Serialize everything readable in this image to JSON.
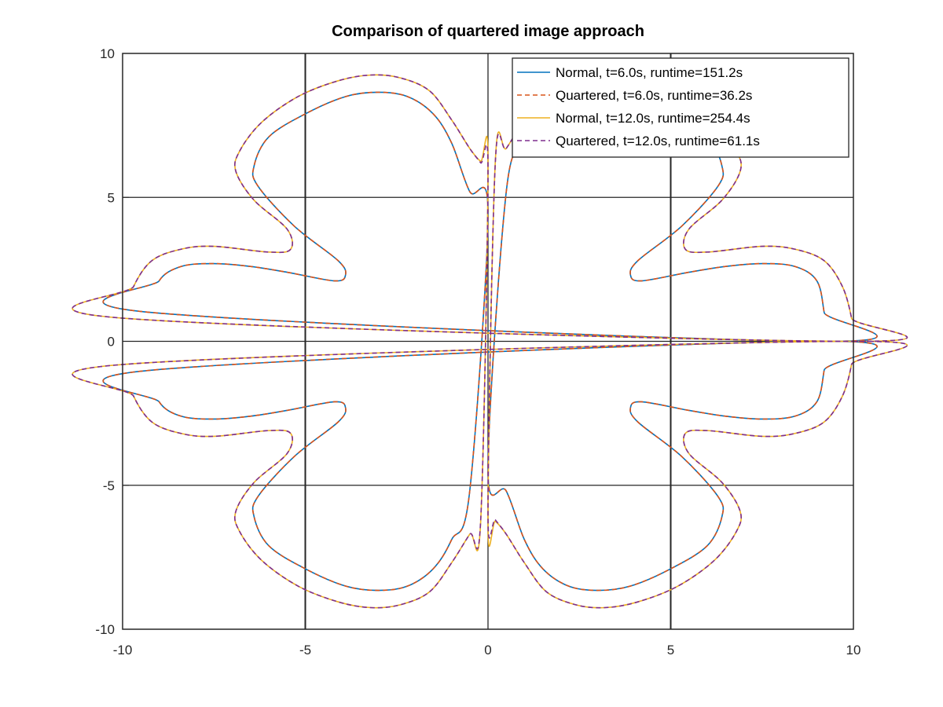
{
  "chart_data": {
    "type": "line",
    "title": "Comparison of quartered image approach",
    "xlabel": "",
    "ylabel": "",
    "xlim": [
      -10,
      10
    ],
    "ylim": [
      -10,
      10
    ],
    "xticks": [
      -10,
      -5,
      0,
      5,
      10
    ],
    "yticks": [
      -10,
      -5,
      0,
      5,
      10
    ],
    "grid": true,
    "legend_position": "top-right",
    "series": [
      {
        "name": "Normal, t=6.0s, runtime=151.2s",
        "color": "#0072bd",
        "style": "solid",
        "points": [
          [
            0,
            4.45
          ],
          [
            0.5,
            5.2
          ],
          [
            1.0,
            6.9
          ],
          [
            1.5,
            7.9
          ],
          [
            2.2,
            8.5
          ],
          [
            3.0,
            8.65
          ],
          [
            3.9,
            8.5
          ],
          [
            5.0,
            7.9
          ],
          [
            6.0,
            7.1
          ],
          [
            6.4,
            6.1
          ],
          [
            6.3,
            5.4
          ],
          [
            5.3,
            4.0
          ],
          [
            4.1,
            2.8
          ],
          [
            3.9,
            2.3
          ],
          [
            4.2,
            2.1
          ],
          [
            5.5,
            2.4
          ],
          [
            6.5,
            2.6
          ],
          [
            7.5,
            2.7
          ],
          [
            8.4,
            2.6
          ],
          [
            9.0,
            2.1
          ],
          [
            9.2,
            1.0
          ],
          [
            9.3,
            0
          ]
        ]
      },
      {
        "name": "Quartered, t=6.0s, runtime=36.2s",
        "color": "#d95319",
        "style": "dashed",
        "points": [
          [
            0,
            4.45
          ],
          [
            0.5,
            5.2
          ],
          [
            1.0,
            6.9
          ],
          [
            1.5,
            7.9
          ],
          [
            2.2,
            8.5
          ],
          [
            3.0,
            8.65
          ],
          [
            3.9,
            8.5
          ],
          [
            5.0,
            7.9
          ],
          [
            6.0,
            7.1
          ],
          [
            6.4,
            6.1
          ],
          [
            6.3,
            5.4
          ],
          [
            5.3,
            4.0
          ],
          [
            4.1,
            2.8
          ],
          [
            3.9,
            2.3
          ],
          [
            4.2,
            2.1
          ],
          [
            5.5,
            2.4
          ],
          [
            6.5,
            2.6
          ],
          [
            7.5,
            2.7
          ],
          [
            8.4,
            2.6
          ],
          [
            9.0,
            2.1
          ],
          [
            9.2,
            1.0
          ],
          [
            9.3,
            0
          ]
        ]
      },
      {
        "name": "Normal, t=12.0s, runtime=254.4s",
        "color": "#edb120",
        "style": "solid",
        "points": [
          [
            0,
            6.2
          ],
          [
            0.2,
            6.25
          ],
          [
            0.5,
            6.7
          ],
          [
            1.0,
            7.7
          ],
          [
            1.6,
            8.7
          ],
          [
            2.4,
            9.15
          ],
          [
            3.2,
            9.25
          ],
          [
            4.1,
            9.05
          ],
          [
            5.2,
            8.5
          ],
          [
            6.2,
            7.6
          ],
          [
            6.8,
            6.6
          ],
          [
            6.9,
            5.9
          ],
          [
            6.4,
            4.9
          ],
          [
            5.5,
            3.9
          ],
          [
            5.4,
            3.2
          ],
          [
            6.0,
            3.1
          ],
          [
            7.5,
            3.3
          ],
          [
            8.4,
            3.2
          ],
          [
            9.2,
            2.8
          ],
          [
            9.7,
            1.9
          ],
          [
            9.95,
            0.8
          ],
          [
            10.0,
            0
          ]
        ]
      },
      {
        "name": "Quartered, t=12.0s, runtime=61.1s",
        "color": "#7e2f8e",
        "style": "dashed",
        "points": [
          [
            0,
            5.85
          ],
          [
            0.2,
            6.2
          ],
          [
            0.5,
            6.7
          ],
          [
            1.0,
            7.7
          ],
          [
            1.6,
            8.7
          ],
          [
            2.4,
            9.15
          ],
          [
            3.2,
            9.25
          ],
          [
            4.1,
            9.05
          ],
          [
            5.2,
            8.5
          ],
          [
            6.2,
            7.6
          ],
          [
            6.8,
            6.6
          ],
          [
            6.9,
            5.9
          ],
          [
            6.4,
            4.9
          ],
          [
            5.5,
            3.9
          ],
          [
            5.4,
            3.2
          ],
          [
            6.0,
            3.1
          ],
          [
            7.5,
            3.3
          ],
          [
            8.4,
            3.2
          ],
          [
            9.2,
            2.8
          ],
          [
            9.7,
            1.9
          ],
          [
            9.95,
            0.8
          ],
          [
            10.0,
            0
          ]
        ]
      }
    ]
  }
}
